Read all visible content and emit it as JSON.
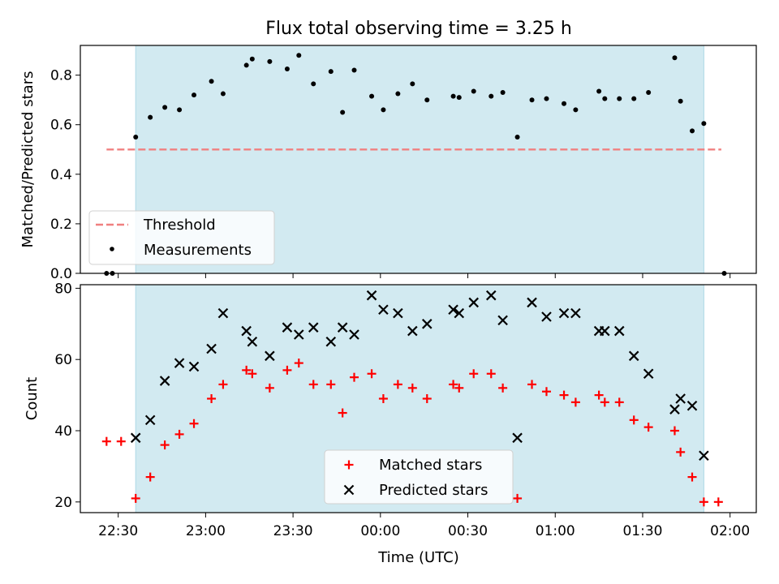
{
  "title": "Flux total observing time = 3.25 h",
  "colors": {
    "threshold": "#f08080",
    "measurement": "#000000",
    "matched": "#ff0000",
    "predicted": "#000000",
    "span": "#add8e6"
  },
  "chart_data": [
    {
      "type": "scatter",
      "panel": "top",
      "ylabel": "Matched/Predicted stars",
      "ylim": [
        0,
        0.92
      ],
      "yticks": [
        0,
        0.2,
        0.4,
        0.6,
        0.8
      ],
      "ytick_labels": [
        "0.0",
        "0.2",
        "0.4",
        "0.6",
        "0.8"
      ],
      "shaded_span": [
        "22:36",
        "01:51"
      ],
      "legend": {
        "position": "lower-left",
        "entries": [
          "Threshold",
          "Measurements"
        ]
      },
      "series": [
        {
          "name": "Threshold",
          "kind": "dashed-line",
          "x": [
            "22:26",
            "01:57"
          ],
          "y": [
            0.5,
            0.5
          ]
        },
        {
          "name": "Measurements",
          "kind": "dots",
          "points": [
            {
              "t": "22:26",
              "y": 0.0
            },
            {
              "t": "22:28",
              "y": 0.0
            },
            {
              "t": "22:36",
              "y": 0.55
            },
            {
              "t": "22:41",
              "y": 0.63
            },
            {
              "t": "22:46",
              "y": 0.67
            },
            {
              "t": "22:51",
              "y": 0.66
            },
            {
              "t": "22:56",
              "y": 0.72
            },
            {
              "t": "23:02",
              "y": 0.775
            },
            {
              "t": "23:06",
              "y": 0.725
            },
            {
              "t": "23:14",
              "y": 0.84
            },
            {
              "t": "23:16",
              "y": 0.865
            },
            {
              "t": "23:22",
              "y": 0.855
            },
            {
              "t": "23:28",
              "y": 0.825
            },
            {
              "t": "23:32",
              "y": 0.88
            },
            {
              "t": "23:37",
              "y": 0.765
            },
            {
              "t": "23:43",
              "y": 0.815
            },
            {
              "t": "23:47",
              "y": 0.65
            },
            {
              "t": "23:51",
              "y": 0.82
            },
            {
              "t": "23:57",
              "y": 0.715
            },
            {
              "t": "00:01",
              "y": 0.66
            },
            {
              "t": "00:06",
              "y": 0.725
            },
            {
              "t": "00:11",
              "y": 0.765
            },
            {
              "t": "00:16",
              "y": 0.7
            },
            {
              "t": "00:25",
              "y": 0.715
            },
            {
              "t": "00:27",
              "y": 0.71
            },
            {
              "t": "00:32",
              "y": 0.735
            },
            {
              "t": "00:38",
              "y": 0.715
            },
            {
              "t": "00:42",
              "y": 0.73
            },
            {
              "t": "00:47",
              "y": 0.55
            },
            {
              "t": "00:52",
              "y": 0.7
            },
            {
              "t": "00:57",
              "y": 0.705
            },
            {
              "t": "01:03",
              "y": 0.685
            },
            {
              "t": "01:07",
              "y": 0.66
            },
            {
              "t": "01:15",
              "y": 0.735
            },
            {
              "t": "01:17",
              "y": 0.705
            },
            {
              "t": "01:22",
              "y": 0.705
            },
            {
              "t": "01:27",
              "y": 0.705
            },
            {
              "t": "01:32",
              "y": 0.73
            },
            {
              "t": "01:41",
              "y": 0.87
            },
            {
              "t": "01:43",
              "y": 0.695
            },
            {
              "t": "01:47",
              "y": 0.575
            },
            {
              "t": "01:51",
              "y": 0.605
            },
            {
              "t": "01:58",
              "y": 0.0
            }
          ]
        }
      ]
    },
    {
      "type": "scatter",
      "panel": "bottom",
      "xlabel": "Time (UTC)",
      "ylabel": "Count",
      "ylim": [
        17,
        81
      ],
      "yticks": [
        20,
        40,
        60,
        80
      ],
      "ytick_labels": [
        "20",
        "40",
        "60",
        "80"
      ],
      "xticks": [
        "22:30",
        "23:00",
        "23:30",
        "00:00",
        "00:30",
        "01:00",
        "01:30",
        "02:00"
      ],
      "xlim": [
        "22:17",
        "02:09"
      ],
      "shaded_span": [
        "22:36",
        "01:51"
      ],
      "legend": {
        "position": "lower-center",
        "entries": [
          "Matched stars",
          "Predicted stars"
        ]
      },
      "series": [
        {
          "name": "Matched stars",
          "marker": "plus",
          "points": [
            {
              "t": "22:26",
              "y": 37
            },
            {
              "t": "22:31",
              "y": 37
            },
            {
              "t": "22:36",
              "y": 21
            },
            {
              "t": "22:41",
              "y": 27
            },
            {
              "t": "22:46",
              "y": 36
            },
            {
              "t": "22:51",
              "y": 39
            },
            {
              "t": "22:56",
              "y": 42
            },
            {
              "t": "23:02",
              "y": 49
            },
            {
              "t": "23:06",
              "y": 53
            },
            {
              "t": "23:14",
              "y": 57
            },
            {
              "t": "23:16",
              "y": 56
            },
            {
              "t": "23:22",
              "y": 52
            },
            {
              "t": "23:28",
              "y": 57
            },
            {
              "t": "23:32",
              "y": 59
            },
            {
              "t": "23:37",
              "y": 53
            },
            {
              "t": "23:43",
              "y": 53
            },
            {
              "t": "23:47",
              "y": 45
            },
            {
              "t": "23:51",
              "y": 55
            },
            {
              "t": "23:57",
              "y": 56
            },
            {
              "t": "00:01",
              "y": 49
            },
            {
              "t": "00:06",
              "y": 53
            },
            {
              "t": "00:11",
              "y": 52
            },
            {
              "t": "00:16",
              "y": 49
            },
            {
              "t": "00:25",
              "y": 53
            },
            {
              "t": "00:27",
              "y": 52
            },
            {
              "t": "00:32",
              "y": 56
            },
            {
              "t": "00:38",
              "y": 56
            },
            {
              "t": "00:42",
              "y": 52
            },
            {
              "t": "00:47",
              "y": 21
            },
            {
              "t": "00:52",
              "y": 53
            },
            {
              "t": "00:57",
              "y": 51
            },
            {
              "t": "01:03",
              "y": 50
            },
            {
              "t": "01:07",
              "y": 48
            },
            {
              "t": "01:15",
              "y": 50
            },
            {
              "t": "01:17",
              "y": 48
            },
            {
              "t": "01:22",
              "y": 48
            },
            {
              "t": "01:27",
              "y": 43
            },
            {
              "t": "01:32",
              "y": 41
            },
            {
              "t": "01:41",
              "y": 40
            },
            {
              "t": "01:43",
              "y": 34
            },
            {
              "t": "01:47",
              "y": 27
            },
            {
              "t": "01:51",
              "y": 20
            },
            {
              "t": "01:56",
              "y": 20
            }
          ]
        },
        {
          "name": "Predicted stars",
          "marker": "x",
          "points": [
            {
              "t": "22:36",
              "y": 38
            },
            {
              "t": "22:41",
              "y": 43
            },
            {
              "t": "22:46",
              "y": 54
            },
            {
              "t": "22:51",
              "y": 59
            },
            {
              "t": "22:56",
              "y": 58
            },
            {
              "t": "23:02",
              "y": 63
            },
            {
              "t": "23:06",
              "y": 73
            },
            {
              "t": "23:14",
              "y": 68
            },
            {
              "t": "23:16",
              "y": 65
            },
            {
              "t": "23:22",
              "y": 61
            },
            {
              "t": "23:28",
              "y": 69
            },
            {
              "t": "23:32",
              "y": 67
            },
            {
              "t": "23:37",
              "y": 69
            },
            {
              "t": "23:43",
              "y": 65
            },
            {
              "t": "23:47",
              "y": 69
            },
            {
              "t": "23:51",
              "y": 67
            },
            {
              "t": "23:57",
              "y": 78
            },
            {
              "t": "00:01",
              "y": 74
            },
            {
              "t": "00:06",
              "y": 73
            },
            {
              "t": "00:11",
              "y": 68
            },
            {
              "t": "00:16",
              "y": 70
            },
            {
              "t": "00:25",
              "y": 74
            },
            {
              "t": "00:27",
              "y": 73
            },
            {
              "t": "00:32",
              "y": 76
            },
            {
              "t": "00:38",
              "y": 78
            },
            {
              "t": "00:42",
              "y": 71
            },
            {
              "t": "00:47",
              "y": 38
            },
            {
              "t": "00:52",
              "y": 76
            },
            {
              "t": "00:57",
              "y": 72
            },
            {
              "t": "01:03",
              "y": 73
            },
            {
              "t": "01:07",
              "y": 73
            },
            {
              "t": "01:15",
              "y": 68
            },
            {
              "t": "01:17",
              "y": 68
            },
            {
              "t": "01:22",
              "y": 68
            },
            {
              "t": "01:27",
              "y": 61
            },
            {
              "t": "01:32",
              "y": 56
            },
            {
              "t": "01:41",
              "y": 46
            },
            {
              "t": "01:43",
              "y": 49
            },
            {
              "t": "01:47",
              "y": 47
            },
            {
              "t": "01:51",
              "y": 33
            }
          ]
        }
      ]
    }
  ]
}
